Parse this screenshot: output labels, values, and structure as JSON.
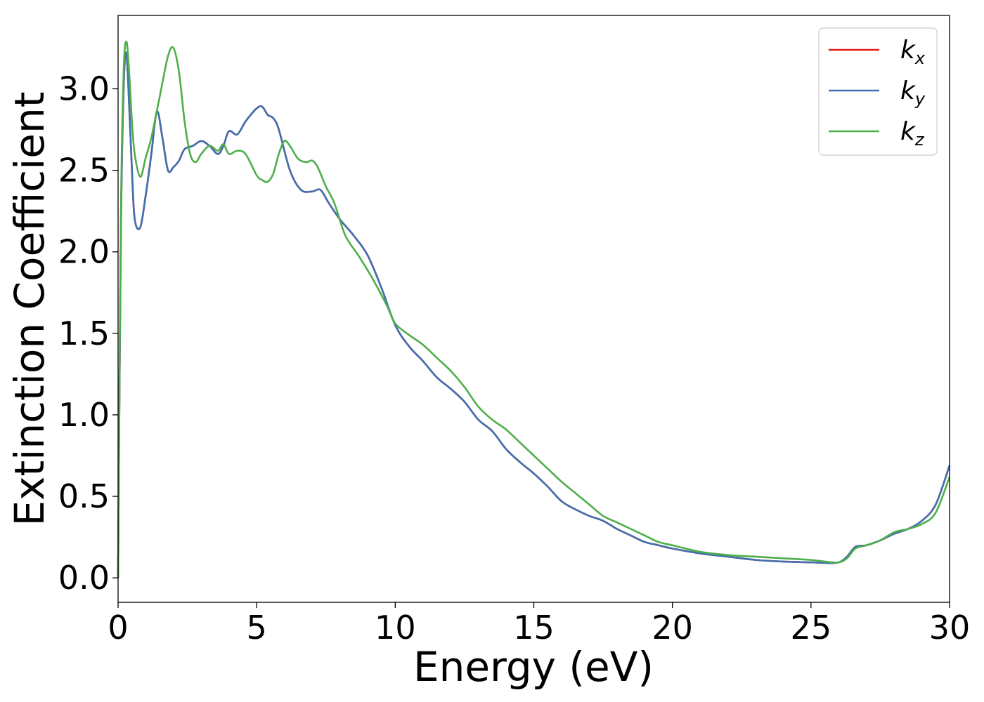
{
  "chart_data": {
    "type": "line",
    "title": "",
    "xlabel": "Energy (eV)",
    "ylabel": "Extinction Coefficient",
    "xlim": [
      0,
      30
    ],
    "ylim": [
      -0.15,
      3.45
    ],
    "xticks": [
      0,
      5,
      10,
      15,
      20,
      25,
      30
    ],
    "xtick_labels": [
      "0",
      "5",
      "10",
      "15",
      "20",
      "25",
      "30"
    ],
    "yticks": [
      0.0,
      0.5,
      1.0,
      1.5,
      2.0,
      2.5,
      3.0
    ],
    "ytick_labels": [
      "0.0",
      "0.5",
      "1.0",
      "1.5",
      "2.0",
      "2.5",
      "3.0"
    ],
    "grid": false,
    "legend_position": "top-right",
    "series": [
      {
        "name": "k_x",
        "label_base": "k",
        "label_sub": "x",
        "color": "#e41a1c",
        "x": [
          0,
          0.1,
          0.2,
          0.3,
          0.4,
          0.5,
          0.6,
          0.8,
          1.0,
          1.2,
          1.4,
          1.6,
          1.8,
          2.0,
          2.2,
          2.4,
          2.7,
          3.0,
          3.3,
          3.6,
          3.8,
          4.0,
          4.3,
          4.6,
          5.0,
          5.2,
          5.4,
          5.6,
          5.8,
          6.2,
          6.6,
          7.0,
          7.3,
          7.6,
          8.0,
          8.5,
          9.0,
          9.5,
          10.0,
          10.5,
          11.0,
          11.5,
          12.0,
          12.5,
          13.0,
          13.5,
          14.0,
          14.5,
          15.0,
          15.5,
          16.0,
          16.5,
          17.0,
          17.5,
          18.0,
          18.5,
          19.0,
          19.5,
          20.0,
          21.0,
          22.0,
          23.0,
          24.0,
          25.0,
          25.5,
          26.0,
          26.3,
          26.6,
          27.0,
          27.5,
          28.0,
          28.5,
          29.0,
          29.5,
          30.0
        ],
        "y": [
          0.0,
          2.1,
          3.0,
          3.22,
          2.9,
          2.5,
          2.2,
          2.15,
          2.35,
          2.6,
          2.86,
          2.7,
          2.5,
          2.52,
          2.56,
          2.63,
          2.65,
          2.68,
          2.65,
          2.6,
          2.65,
          2.74,
          2.72,
          2.8,
          2.88,
          2.89,
          2.84,
          2.82,
          2.75,
          2.5,
          2.38,
          2.37,
          2.38,
          2.3,
          2.2,
          2.1,
          1.98,
          1.78,
          1.55,
          1.42,
          1.33,
          1.23,
          1.16,
          1.08,
          0.97,
          0.9,
          0.79,
          0.71,
          0.64,
          0.56,
          0.47,
          0.42,
          0.38,
          0.35,
          0.3,
          0.26,
          0.22,
          0.2,
          0.18,
          0.15,
          0.13,
          0.11,
          0.1,
          0.095,
          0.092,
          0.095,
          0.13,
          0.19,
          0.2,
          0.23,
          0.27,
          0.3,
          0.35,
          0.45,
          0.69
        ]
      },
      {
        "name": "k_y",
        "label_base": "k",
        "label_sub": "y",
        "color": "#4070b0",
        "x": [
          0,
          0.1,
          0.2,
          0.3,
          0.4,
          0.5,
          0.6,
          0.8,
          1.0,
          1.2,
          1.4,
          1.6,
          1.8,
          2.0,
          2.2,
          2.4,
          2.7,
          3.0,
          3.3,
          3.6,
          3.8,
          4.0,
          4.3,
          4.6,
          5.0,
          5.2,
          5.4,
          5.6,
          5.8,
          6.2,
          6.6,
          7.0,
          7.3,
          7.6,
          8.0,
          8.5,
          9.0,
          9.5,
          10.0,
          10.5,
          11.0,
          11.5,
          12.0,
          12.5,
          13.0,
          13.5,
          14.0,
          14.5,
          15.0,
          15.5,
          16.0,
          16.5,
          17.0,
          17.5,
          18.0,
          18.5,
          19.0,
          19.5,
          20.0,
          21.0,
          22.0,
          23.0,
          24.0,
          25.0,
          25.5,
          26.0,
          26.3,
          26.6,
          27.0,
          27.5,
          28.0,
          28.5,
          29.0,
          29.5,
          30.0
        ],
        "y": [
          0.0,
          2.1,
          3.0,
          3.22,
          2.9,
          2.5,
          2.2,
          2.15,
          2.35,
          2.6,
          2.86,
          2.7,
          2.5,
          2.52,
          2.56,
          2.63,
          2.65,
          2.68,
          2.65,
          2.6,
          2.65,
          2.74,
          2.72,
          2.8,
          2.88,
          2.89,
          2.84,
          2.82,
          2.75,
          2.5,
          2.38,
          2.37,
          2.38,
          2.3,
          2.2,
          2.1,
          1.98,
          1.78,
          1.55,
          1.42,
          1.33,
          1.23,
          1.16,
          1.08,
          0.97,
          0.9,
          0.79,
          0.71,
          0.64,
          0.56,
          0.47,
          0.42,
          0.38,
          0.35,
          0.3,
          0.26,
          0.22,
          0.2,
          0.18,
          0.15,
          0.13,
          0.11,
          0.1,
          0.095,
          0.092,
          0.095,
          0.13,
          0.19,
          0.2,
          0.23,
          0.27,
          0.3,
          0.35,
          0.45,
          0.69
        ]
      },
      {
        "name": "k_z",
        "label_base": "k",
        "label_sub": "z",
        "color": "#4daf4a",
        "x": [
          0,
          0.1,
          0.2,
          0.3,
          0.4,
          0.5,
          0.6,
          0.8,
          1.0,
          1.2,
          1.5,
          1.8,
          2.0,
          2.2,
          2.4,
          2.6,
          2.8,
          3.0,
          3.3,
          3.6,
          3.8,
          4.0,
          4.3,
          4.6,
          5.0,
          5.2,
          5.4,
          5.6,
          5.8,
          6.0,
          6.2,
          6.5,
          6.8,
          7.0,
          7.2,
          7.5,
          7.8,
          8.2,
          8.7,
          9.2,
          9.7,
          10.0,
          10.5,
          11.0,
          11.5,
          12.0,
          12.5,
          13.0,
          13.5,
          14.0,
          14.5,
          15.0,
          15.5,
          16.0,
          16.5,
          17.0,
          17.5,
          18.0,
          18.5,
          19.0,
          19.5,
          20.0,
          21.0,
          22.0,
          23.0,
          24.0,
          25.0,
          25.5,
          26.0,
          26.3,
          26.6,
          27.0,
          27.5,
          28.0,
          28.5,
          29.0,
          29.5,
          30.0
        ],
        "y": [
          0.0,
          2.2,
          3.1,
          3.29,
          3.1,
          2.8,
          2.6,
          2.46,
          2.58,
          2.7,
          2.95,
          3.2,
          3.25,
          3.1,
          2.8,
          2.6,
          2.55,
          2.6,
          2.65,
          2.62,
          2.66,
          2.6,
          2.62,
          2.6,
          2.47,
          2.44,
          2.43,
          2.48,
          2.6,
          2.68,
          2.65,
          2.57,
          2.55,
          2.56,
          2.52,
          2.4,
          2.3,
          2.1,
          1.97,
          1.83,
          1.67,
          1.56,
          1.49,
          1.43,
          1.35,
          1.27,
          1.17,
          1.05,
          0.97,
          0.91,
          0.83,
          0.75,
          0.67,
          0.59,
          0.52,
          0.45,
          0.38,
          0.34,
          0.3,
          0.26,
          0.22,
          0.2,
          0.16,
          0.14,
          0.13,
          0.12,
          0.11,
          0.1,
          0.095,
          0.12,
          0.18,
          0.2,
          0.23,
          0.28,
          0.3,
          0.33,
          0.4,
          0.62
        ]
      }
    ]
  }
}
